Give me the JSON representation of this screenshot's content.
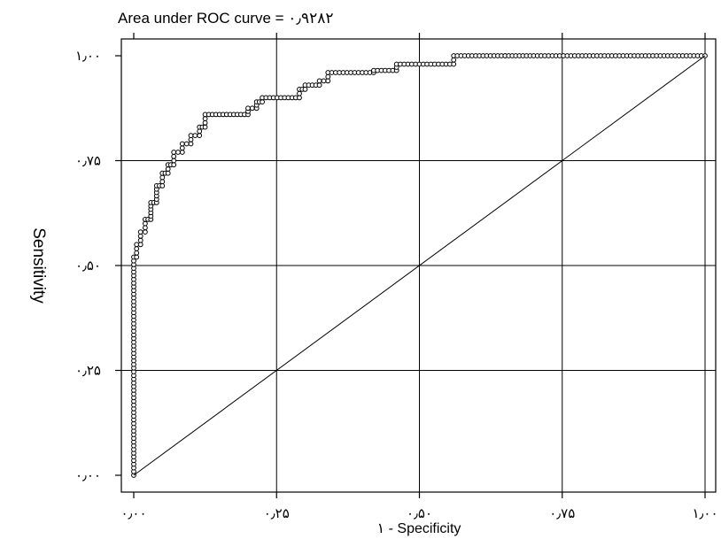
{
  "chart_data": {
    "type": "line",
    "title": "Area under ROC curve = ۰٫۹۲۸۲",
    "xlabel": "۱ - Specificity",
    "ylabel": "Sensitivity",
    "xlim": [
      0,
      1
    ],
    "ylim": [
      0,
      1
    ],
    "grid": true,
    "x_ticks": [
      0,
      0.25,
      0.5,
      0.75,
      1.0
    ],
    "x_tick_labels": [
      "۰٫۰۰",
      "۰٫۲۵",
      "۰٫۵۰",
      "۰٫۷۵",
      "۱٫۰۰"
    ],
    "y_ticks": [
      0,
      0.25,
      0.5,
      0.75,
      1.0
    ],
    "y_tick_labels": [
      "۰٫۰۰",
      "۰٫۲۵",
      "۰٫۵۰",
      "۰٫۷۵",
      "۱٫۰۰"
    ],
    "series": [
      {
        "style": "marked-step",
        "x": [
          0.0,
          0.0,
          0.005,
          0.005,
          0.012,
          0.012,
          0.02,
          0.02,
          0.03,
          0.03,
          0.04,
          0.04,
          0.05,
          0.05,
          0.06,
          0.06,
          0.07,
          0.07,
          0.085,
          0.085,
          0.1,
          0.1,
          0.115,
          0.115,
          0.125,
          0.125,
          0.2,
          0.2,
          0.215,
          0.215,
          0.225,
          0.225,
          0.29,
          0.29,
          0.3,
          0.3,
          0.325,
          0.325,
          0.34,
          0.34,
          0.42,
          0.42,
          0.46,
          0.46,
          0.56,
          0.56,
          0.65,
          0.65,
          0.7,
          1.0
        ],
        "y": [
          0.0,
          0.52,
          0.52,
          0.55,
          0.55,
          0.58,
          0.58,
          0.61,
          0.61,
          0.65,
          0.65,
          0.69,
          0.69,
          0.72,
          0.72,
          0.74,
          0.74,
          0.77,
          0.77,
          0.79,
          0.79,
          0.81,
          0.81,
          0.83,
          0.83,
          0.86,
          0.86,
          0.875,
          0.875,
          0.89,
          0.89,
          0.9,
          0.9,
          0.92,
          0.92,
          0.93,
          0.93,
          0.94,
          0.94,
          0.96,
          0.96,
          0.965,
          0.965,
          0.98,
          0.98,
          1.0,
          1.0,
          1.0,
          1.0,
          1.0
        ]
      },
      {
        "style": "reference-diagonal",
        "x": [
          0,
          1
        ],
        "y": [
          0,
          1
        ]
      }
    ]
  }
}
